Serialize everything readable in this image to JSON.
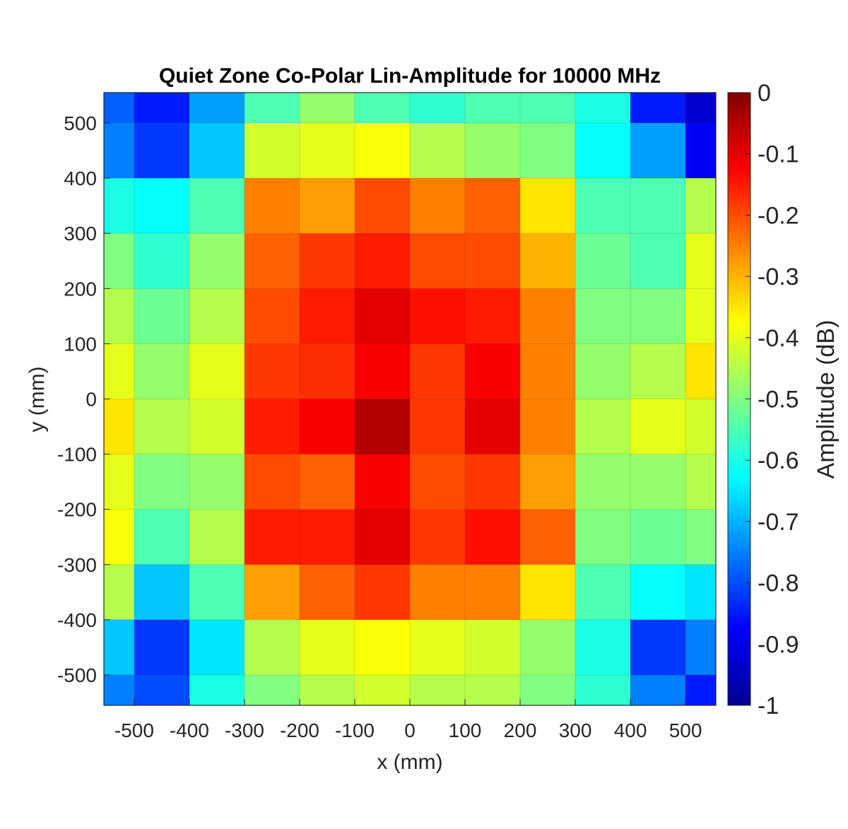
{
  "chart_data": {
    "type": "heatmap",
    "title": "Quiet Zone Co-Polar Lin-Amplitude for 10000 MHz",
    "xlabel": "x (mm)",
    "ylabel": "y (mm)",
    "colorbar_label": "Amplitude (dB)",
    "colormap": "jet",
    "xlim": [
      -555,
      555
    ],
    "ylim": [
      -555,
      555
    ],
    "clim": [
      -1,
      0
    ],
    "grid": true,
    "xticks": [
      -500,
      -400,
      -300,
      -200,
      -100,
      0,
      100,
      200,
      300,
      400,
      500
    ],
    "xtick_labels": [
      "-500",
      "-400",
      "-300",
      "-200",
      "-100",
      "0",
      "100",
      "200",
      "300",
      "400",
      "500"
    ],
    "yticks": [
      500,
      400,
      300,
      200,
      100,
      0,
      -100,
      -200,
      -300,
      -400,
      -500
    ],
    "ytick_labels": [
      "500",
      "400",
      "300",
      "200",
      "100",
      "0",
      "-100",
      "-200",
      "-300",
      "-400",
      "-500"
    ],
    "cticks": [
      0,
      -0.1,
      -0.2,
      -0.3,
      -0.4,
      -0.5,
      -0.6,
      -0.7,
      -0.8,
      -0.9,
      -1
    ],
    "ctick_labels": [
      "0",
      "-0.1",
      "-0.2",
      "-0.3",
      "-0.4",
      "-0.5",
      "-0.6",
      "-0.7",
      "-0.8",
      "-0.9",
      "-1"
    ],
    "x": [
      -550,
      -450,
      -350,
      -250,
      -150,
      -50,
      50,
      150,
      250,
      350,
      450,
      550
    ],
    "y": [
      550,
      450,
      350,
      250,
      150,
      50,
      -50,
      -150,
      -250,
      -350,
      -450,
      -550
    ],
    "values": [
      [
        -0.78,
        -0.85,
        -0.72,
        -0.55,
        -0.48,
        -0.55,
        -0.58,
        -0.55,
        -0.55,
        -0.6,
        -0.85,
        -0.92
      ],
      [
        -0.75,
        -0.82,
        -0.68,
        -0.42,
        -0.4,
        -0.38,
        -0.45,
        -0.48,
        -0.5,
        -0.62,
        -0.72,
        -0.88
      ],
      [
        -0.6,
        -0.62,
        -0.55,
        -0.25,
        -0.28,
        -0.2,
        -0.25,
        -0.22,
        -0.35,
        -0.55,
        -0.55,
        -0.45
      ],
      [
        -0.5,
        -0.58,
        -0.48,
        -0.22,
        -0.18,
        -0.15,
        -0.2,
        -0.2,
        -0.3,
        -0.52,
        -0.55,
        -0.4
      ],
      [
        -0.45,
        -0.52,
        -0.45,
        -0.2,
        -0.15,
        -0.1,
        -0.14,
        -0.15,
        -0.25,
        -0.5,
        -0.5,
        -0.4
      ],
      [
        -0.4,
        -0.48,
        -0.4,
        -0.18,
        -0.17,
        -0.12,
        -0.18,
        -0.12,
        -0.25,
        -0.48,
        -0.45,
        -0.35
      ],
      [
        -0.35,
        -0.45,
        -0.42,
        -0.15,
        -0.12,
        -0.05,
        -0.18,
        -0.1,
        -0.25,
        -0.45,
        -0.4,
        -0.42
      ],
      [
        -0.4,
        -0.5,
        -0.48,
        -0.2,
        -0.22,
        -0.12,
        -0.2,
        -0.18,
        -0.28,
        -0.48,
        -0.48,
        -0.45
      ],
      [
        -0.38,
        -0.55,
        -0.45,
        -0.15,
        -0.15,
        -0.1,
        -0.18,
        -0.14,
        -0.22,
        -0.5,
        -0.52,
        -0.5
      ],
      [
        -0.45,
        -0.68,
        -0.55,
        -0.28,
        -0.22,
        -0.18,
        -0.25,
        -0.25,
        -0.35,
        -0.55,
        -0.62,
        -0.65
      ],
      [
        -0.68,
        -0.82,
        -0.65,
        -0.45,
        -0.4,
        -0.38,
        -0.4,
        -0.42,
        -0.48,
        -0.6,
        -0.82,
        -0.75
      ],
      [
        -0.75,
        -0.8,
        -0.6,
        -0.5,
        -0.45,
        -0.42,
        -0.45,
        -0.45,
        -0.5,
        -0.58,
        -0.75,
        -0.85
      ]
    ]
  }
}
